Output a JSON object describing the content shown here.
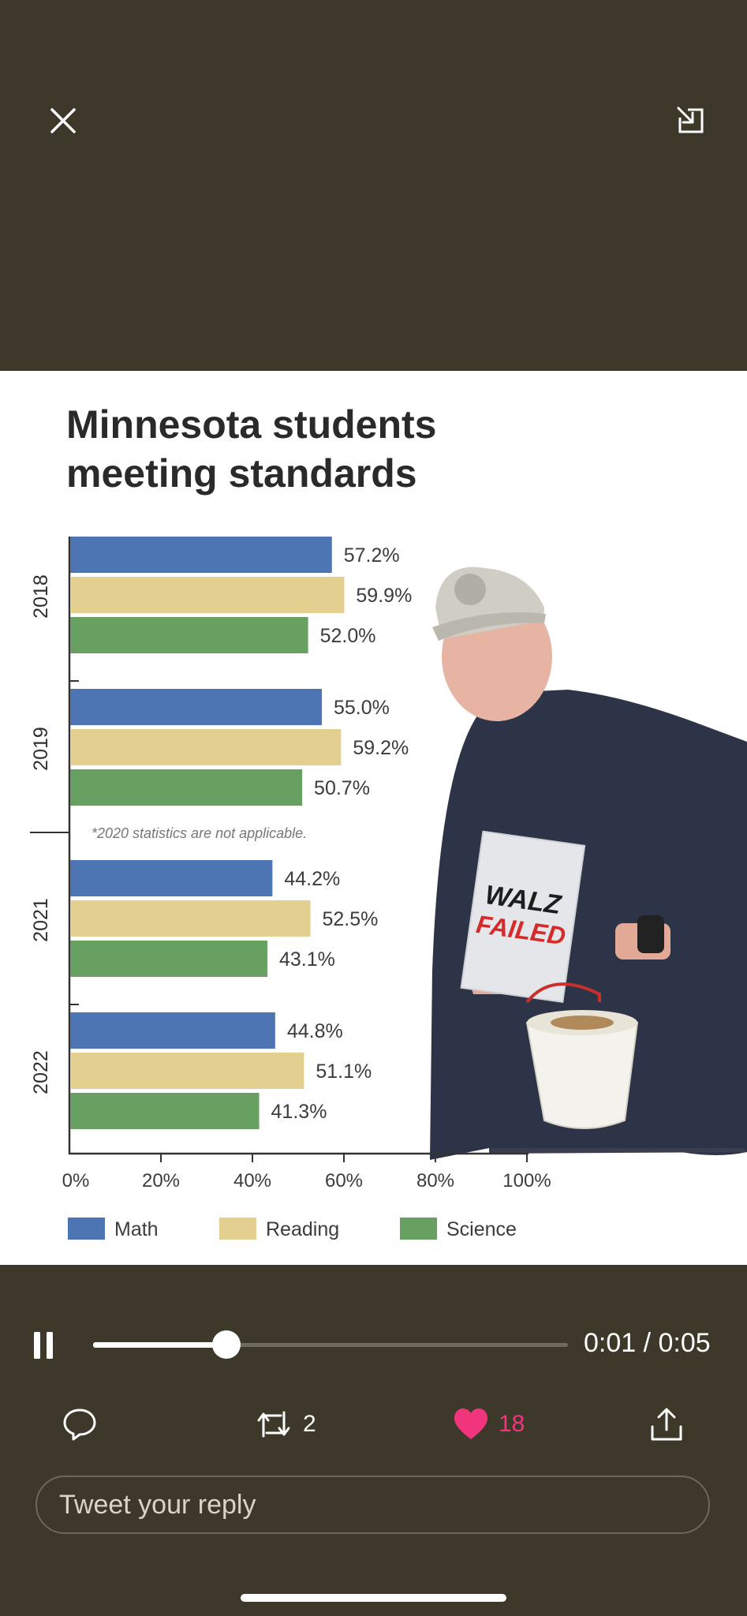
{
  "top_bar": {
    "close_icon": "close-icon",
    "minimize_icon": "minimize-icon"
  },
  "chart_data": {
    "type": "bar",
    "orientation": "horizontal",
    "title": "Minnesota students meeting standards",
    "title_lines": [
      "Minnesota students",
      "meeting standards"
    ],
    "categories": [
      "2018",
      "2019",
      "2021",
      "2022"
    ],
    "series": [
      {
        "name": "Math",
        "color": "#4d74b3",
        "values": [
          57.2,
          55.0,
          44.2,
          44.8
        ],
        "labels": [
          "57.2%",
          "55.0%",
          "44.2%",
          "44.8%"
        ]
      },
      {
        "name": "Reading",
        "color": "#e3cf8f",
        "values": [
          59.9,
          59.2,
          52.5,
          51.1
        ],
        "labels": [
          "59.9%",
          "59.2%",
          "52.5%",
          "51.1%"
        ]
      },
      {
        "name": "Science",
        "color": "#67a061",
        "values": [
          52.0,
          50.7,
          43.1,
          41.3
        ],
        "labels": [
          "52.0%",
          "50.7%",
          "43.1%",
          "41.3%"
        ]
      }
    ],
    "xlim": [
      0,
      100
    ],
    "xticks": [
      "0%",
      "20%",
      "40%",
      "60%",
      "80%",
      "100%"
    ],
    "note": "*2020 statistics are not applicable.",
    "legend": [
      "Math",
      "Reading",
      "Science"
    ],
    "legend_position": "bottom"
  },
  "photo": {
    "sign_line1": "WALZ",
    "sign_line2": "FAILED"
  },
  "player": {
    "pause_icon": "pause-icon",
    "progress": 0.28,
    "time": "0:01 / 0:05"
  },
  "actions": {
    "reply_icon": "speech-bubble-icon",
    "retweet_icon": "retweet-icon",
    "retweet_count": "2",
    "like_icon": "heart-icon",
    "like_count": "18",
    "like_color": "#f0357d",
    "share_icon": "share-icon"
  },
  "reply": {
    "placeholder": "Tweet your reply"
  },
  "colors": {
    "background": "#3d3829",
    "accent": "#f0357d"
  }
}
